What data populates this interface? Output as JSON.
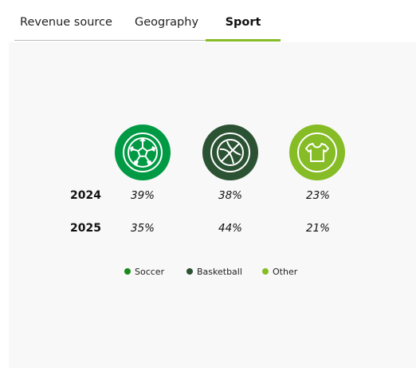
{
  "tabs": [
    {
      "label": "Revenue source",
      "active": false
    },
    {
      "label": "Geography",
      "active": false
    },
    {
      "label": "Sport",
      "active": true
    }
  ],
  "icons": [
    {
      "name": "soccer-ball-icon",
      "color": "#009a44"
    },
    {
      "name": "basketball-icon",
      "color": "#2c5234"
    },
    {
      "name": "jersey-icon",
      "color": "#86bc25"
    }
  ],
  "rows": [
    {
      "year": "2024",
      "values": [
        "39%",
        "38%",
        "23%"
      ]
    },
    {
      "year": "2025",
      "values": [
        "35%",
        "44%",
        "21%"
      ]
    }
  ],
  "legend": [
    {
      "label": "Soccer",
      "color": "#1a8a1a"
    },
    {
      "label": "Basketball",
      "color": "#2c5234"
    },
    {
      "label": "Other",
      "color": "#86bc25"
    }
  ],
  "colors": {
    "accent": "#86bc25",
    "panel_bg": "#f8f8f8"
  }
}
